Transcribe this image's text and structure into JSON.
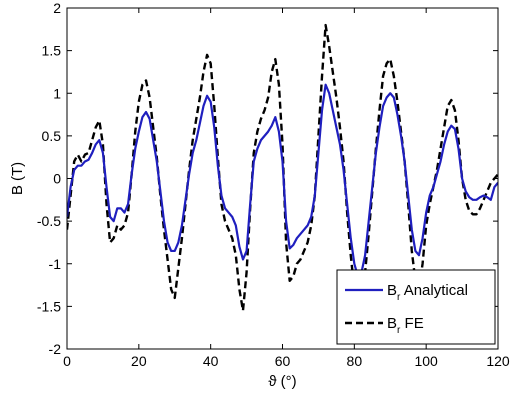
{
  "chart_data": {
    "type": "line",
    "xlabel": "ϑ (°)",
    "ylabel": "B (T)",
    "xlim": [
      0,
      120
    ],
    "ylim": [
      -2,
      2
    ],
    "xticks": [
      0,
      20,
      40,
      60,
      80,
      100,
      120
    ],
    "yticks": [
      -2,
      -1.5,
      -1,
      -0.5,
      0,
      0.5,
      1,
      1.5,
      2
    ],
    "grid": false,
    "legend_position": "bottom-right",
    "series": [
      {
        "name": "Br Analytical",
        "legend_main": "B",
        "legend_sub": "r",
        "legend_rest": " Analytical",
        "style": "solid",
        "color": "#1f1fbf",
        "x": [
          0,
          1,
          2,
          3,
          4,
          5,
          6,
          7,
          8,
          9,
          10,
          11,
          12,
          13,
          14,
          15,
          16,
          17,
          18,
          19,
          20,
          21,
          22,
          23,
          24,
          25,
          26,
          27,
          28,
          29,
          30,
          31,
          32,
          33,
          34,
          35,
          36,
          37,
          38,
          39,
          40,
          41,
          42,
          43,
          44,
          45,
          46,
          47,
          48,
          49,
          50,
          51,
          52,
          53,
          54,
          55,
          56,
          57,
          58,
          59,
          60,
          61,
          62,
          63,
          64,
          65,
          66,
          67,
          68,
          69,
          70,
          71,
          72,
          73,
          74,
          75,
          76,
          77,
          78,
          79,
          80,
          81,
          82,
          83,
          84,
          85,
          86,
          87,
          88,
          89,
          90,
          91,
          92,
          93,
          94,
          95,
          96,
          97,
          98,
          99,
          100,
          101,
          102,
          103,
          104,
          105,
          106,
          107,
          108,
          109,
          110,
          111,
          112,
          113,
          114,
          115,
          116,
          117,
          118,
          119,
          120
        ],
        "y": [
          -0.45,
          -0.1,
          0.1,
          0.15,
          0.15,
          0.2,
          0.22,
          0.3,
          0.4,
          0.45,
          0.3,
          -0.1,
          -0.45,
          -0.5,
          -0.35,
          -0.35,
          -0.4,
          -0.3,
          0.05,
          0.35,
          0.55,
          0.72,
          0.78,
          0.7,
          0.45,
          0.2,
          -0.15,
          -0.5,
          -0.75,
          -0.85,
          -0.85,
          -0.75,
          -0.55,
          -0.25,
          0.05,
          0.3,
          0.45,
          0.65,
          0.85,
          0.97,
          0.9,
          0.6,
          0.15,
          -0.2,
          -0.35,
          -0.4,
          -0.45,
          -0.55,
          -0.8,
          -0.95,
          -0.85,
          -0.3,
          0.2,
          0.35,
          0.45,
          0.5,
          0.55,
          0.62,
          0.72,
          0.55,
          0.2,
          -0.5,
          -0.82,
          -0.78,
          -0.7,
          -0.65,
          -0.6,
          -0.55,
          -0.45,
          -0.2,
          0.3,
          0.8,
          1.1,
          1.0,
          0.8,
          0.6,
          0.4,
          0.1,
          -0.3,
          -0.7,
          -1.0,
          -1.15,
          -1.1,
          -0.9,
          -0.5,
          -0.1,
          0.3,
          0.6,
          0.85,
          0.95,
          1.0,
          0.95,
          0.75,
          0.5,
          0.2,
          -0.2,
          -0.6,
          -0.85,
          -0.9,
          -0.7,
          -0.4,
          -0.2,
          -0.1,
          0.05,
          0.2,
          0.4,
          0.55,
          0.62,
          0.58,
          0.35,
          0.0,
          -0.15,
          -0.22,
          -0.25,
          -0.25,
          -0.22,
          -0.2,
          -0.22,
          -0.25,
          -0.1,
          -0.05
        ]
      },
      {
        "name": "Br FE",
        "legend_main": "B",
        "legend_sub": "r",
        "legend_rest": " FE",
        "style": "dashed",
        "color": "#000000",
        "x": [
          0,
          1,
          2,
          3,
          4,
          5,
          6,
          7,
          8,
          9,
          10,
          11,
          12,
          13,
          14,
          15,
          16,
          17,
          18,
          19,
          20,
          21,
          22,
          23,
          24,
          25,
          26,
          27,
          28,
          29,
          30,
          31,
          32,
          33,
          34,
          35,
          36,
          37,
          38,
          39,
          40,
          41,
          42,
          43,
          44,
          45,
          46,
          47,
          48,
          49,
          50,
          51,
          52,
          53,
          54,
          55,
          56,
          57,
          58,
          59,
          60,
          61,
          62,
          63,
          64,
          65,
          66,
          67,
          68,
          69,
          70,
          71,
          72,
          73,
          74,
          75,
          76,
          77,
          78,
          79,
          80,
          81,
          82,
          83,
          84,
          85,
          86,
          87,
          88,
          89,
          90,
          91,
          92,
          93,
          94,
          95,
          96,
          97,
          98,
          99,
          100,
          101,
          102,
          103,
          104,
          105,
          106,
          107,
          108,
          109,
          110,
          111,
          112,
          113,
          114,
          115,
          116,
          117,
          118,
          119,
          120
        ],
        "y": [
          -0.6,
          -0.2,
          0.2,
          0.28,
          0.2,
          0.28,
          0.3,
          0.45,
          0.6,
          0.68,
          0.4,
          -0.3,
          -0.75,
          -0.7,
          -0.55,
          -0.6,
          -0.55,
          -0.4,
          0.05,
          0.55,
          0.9,
          1.1,
          1.15,
          0.95,
          0.6,
          0.25,
          -0.2,
          -0.6,
          -0.95,
          -1.3,
          -1.4,
          -1.05,
          -0.7,
          -0.3,
          0.1,
          0.45,
          0.7,
          0.95,
          1.25,
          1.45,
          1.35,
          0.85,
          0.25,
          -0.3,
          -0.5,
          -0.6,
          -0.7,
          -0.9,
          -1.3,
          -1.55,
          -1.1,
          -0.35,
          0.3,
          0.55,
          0.7,
          0.8,
          0.95,
          1.25,
          1.4,
          1.1,
          0.4,
          -0.75,
          -1.2,
          -1.15,
          -1.0,
          -0.95,
          -0.85,
          -0.75,
          -0.55,
          -0.2,
          0.5,
          1.2,
          1.8,
          1.55,
          1.25,
          0.95,
          0.6,
          0.2,
          -0.4,
          -0.9,
          -1.3,
          -1.45,
          -1.35,
          -1.1,
          -0.65,
          -0.15,
          0.35,
          0.8,
          1.2,
          1.35,
          1.4,
          1.2,
          0.9,
          0.55,
          0.2,
          -0.3,
          -0.85,
          -1.2,
          -1.3,
          -1.0,
          -0.55,
          -0.3,
          -0.1,
          0.1,
          0.35,
          0.6,
          0.85,
          0.92,
          0.8,
          0.45,
          0.0,
          -0.25,
          -0.38,
          -0.42,
          -0.42,
          -0.35,
          -0.25,
          -0.15,
          -0.05,
          0.0,
          0.05
        ]
      }
    ]
  }
}
